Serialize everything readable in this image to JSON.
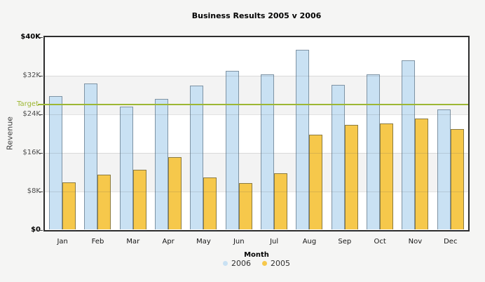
{
  "title": "Business Results 2005 v 2006",
  "y_axis": {
    "title": "Revenue",
    "ticks": [
      {
        "label": "$40K",
        "value": 40,
        "emphasis": true
      },
      {
        "label": "$32K",
        "value": 32,
        "emphasis": false
      },
      {
        "label": "$24K",
        "value": 24,
        "emphasis": false
      },
      {
        "label": "$16K",
        "value": 16,
        "emphasis": false
      },
      {
        "label": "$8K",
        "value": 8,
        "emphasis": false
      },
      {
        "label": "$0",
        "value": 0,
        "emphasis": true
      }
    ]
  },
  "x_axis": {
    "title": "Month"
  },
  "target": {
    "label": "Target",
    "value": 26,
    "color": "#9db733"
  },
  "legend": [
    {
      "label": "2006",
      "color": "#c9e1f3"
    },
    {
      "label": "2005",
      "color": "#f6c84b"
    }
  ],
  "colors": {
    "background": "#f5f5f4",
    "plot_fill": "#ffffff",
    "plot_band": "#f3f3f3",
    "frame": "#2d2d2d",
    "gridline": "#dddddd",
    "series_2006_fill": "#c9e1f3",
    "series_2006_border": "#7e93a4",
    "series_2005_fill": "#f6c84b",
    "series_2005_border": "#8b7b41",
    "target_line": "#9db733"
  },
  "chart_data": {
    "type": "bar",
    "title": "Business Results 2005 v 2006",
    "xlabel": "Month",
    "ylabel": "Revenue",
    "ylim": [
      0,
      40
    ],
    "unit": "thousand dollars",
    "grid": true,
    "legend_position": "bottom",
    "categories": [
      "Jan",
      "Feb",
      "Mar",
      "Apr",
      "May",
      "Jun",
      "Jul",
      "Aug",
      "Sep",
      "Oct",
      "Nov",
      "Dec"
    ],
    "series": [
      {
        "name": "2006",
        "values": [
          27.6,
          30.2,
          25.5,
          27.0,
          29.8,
          32.9,
          32.1,
          37.2,
          29.9,
          32.2,
          35.1,
          24.9
        ]
      },
      {
        "name": "2005",
        "values": [
          9.8,
          11.4,
          12.4,
          15.0,
          10.8,
          9.6,
          11.6,
          19.7,
          21.7,
          22.0,
          23.0,
          20.8
        ]
      }
    ],
    "target_line": {
      "label": "Target",
      "value": 26
    }
  }
}
